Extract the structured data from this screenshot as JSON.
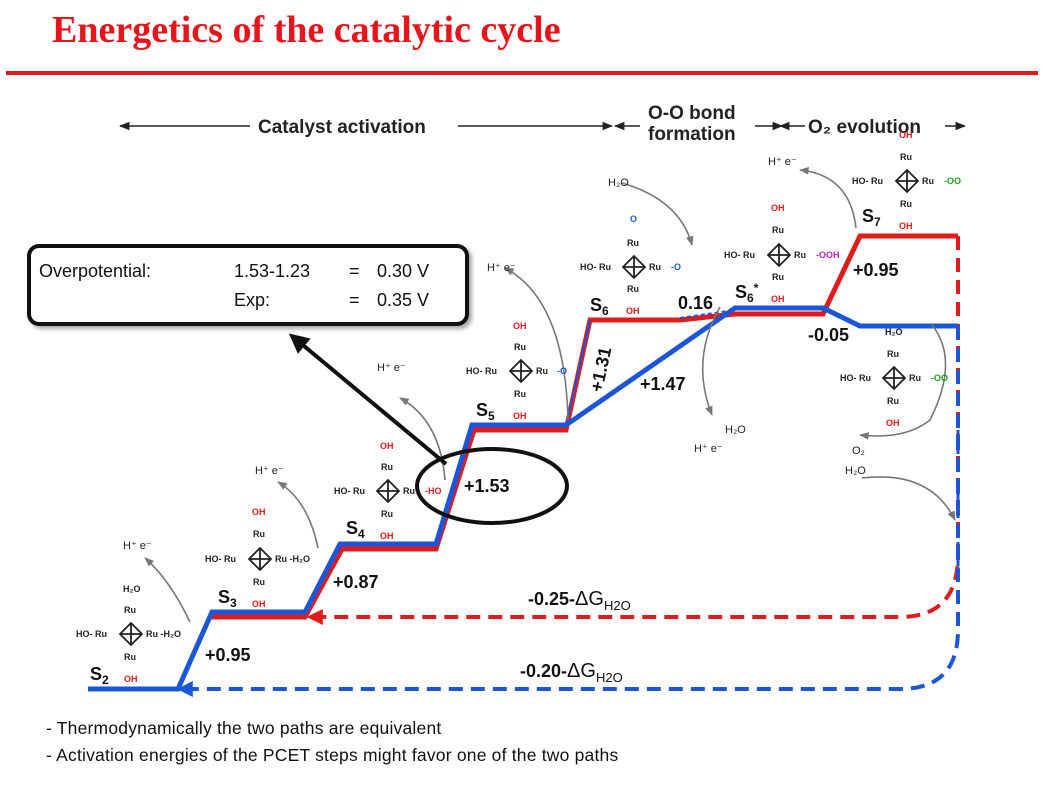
{
  "title": "Energetics of the catalytic cycle",
  "phases": {
    "catalyst_activation": "Catalyst activation",
    "oo_bond_line1": "O-O bond",
    "oo_bond_line2": "formation",
    "o2_evolution": "O₂ evolution"
  },
  "overpotential": {
    "label": "Overpotential:",
    "calc_expr": "1.53-1.23",
    "calc_eq": "=",
    "calc_value": "0.30 V",
    "exp_label": "Exp:",
    "exp_eq": "=",
    "exp_value": "0.35 V"
  },
  "states": {
    "s2": "S2",
    "s3": "S3",
    "s4": "S4",
    "s5": "S5",
    "s6": "S6",
    "s6star": "S6*",
    "s7": "S7"
  },
  "energies": {
    "e1": "+0.95",
    "e2": "+0.87",
    "e3": "+1.53",
    "e4": "+1.31",
    "e5": "0.16",
    "e6": "+1.47",
    "e7": "+0.95",
    "e8": "-0.05"
  },
  "return_paths": {
    "red": {
      "prefix": "-0.25-",
      "delta": "ΔG",
      "sub": "H2O",
      "color": "#e01b1b"
    },
    "blue": {
      "prefix": "-0.20-",
      "delta": "ΔG",
      "sub": "H2O",
      "color": "#1c56d8"
    }
  },
  "species": {
    "he": "H⁺ e⁻",
    "h2o": "H₂O",
    "o2": "O₂",
    "ru": "Ru",
    "oh": "OH",
    "ho_ru": "HO- Ru",
    "ru_h2o": "Ru -H₂O",
    "ru_o": "Ru -O",
    "ru_ooh": "Ru -OOH",
    "ru_oo": "Ru -OO",
    "ho": "-HO",
    "o": "O"
  },
  "notes": [
    "- Thermodynamically the two paths are equivalent",
    "- Activation energies of the PCET steps might favor one of the two paths"
  ],
  "colors": {
    "red_path": "#e01b1b",
    "blue_path": "#1c56d8",
    "title": "#e8141b"
  }
}
